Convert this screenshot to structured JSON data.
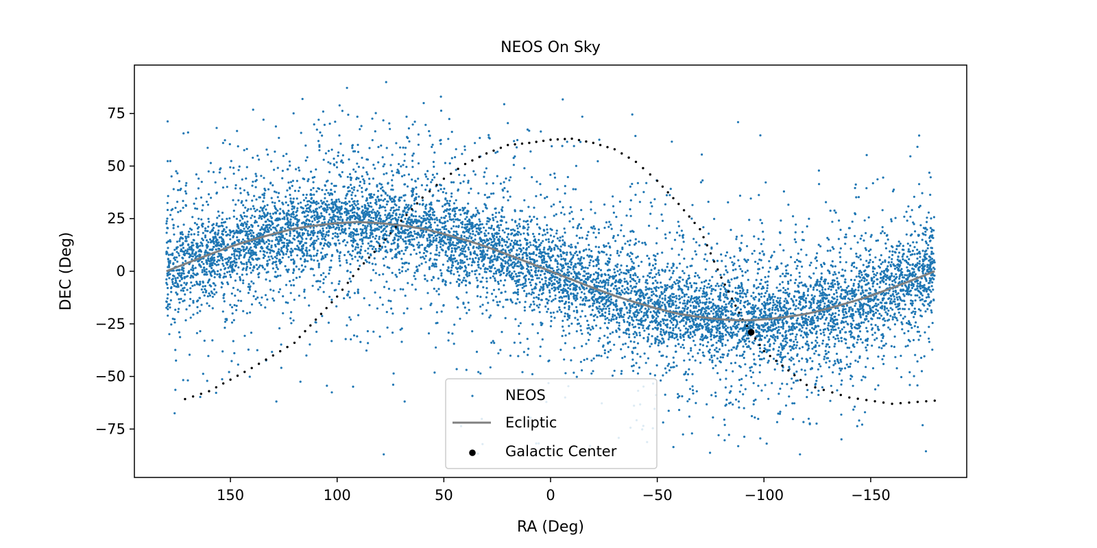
{
  "chart_data": {
    "type": "scatter",
    "title": "NEOS On Sky",
    "xlabel": "RA (Deg)",
    "ylabel": "DEC (Deg)",
    "xlim": [
      195,
      -195
    ],
    "ylim": [
      -98,
      98
    ],
    "x_ticks": [
      150,
      100,
      50,
      0,
      -50,
      -100,
      -150
    ],
    "x_tick_labels": [
      "150",
      "100",
      "50",
      "0",
      "−50",
      "−100",
      "−150"
    ],
    "y_ticks": [
      75,
      50,
      25,
      0,
      -25,
      -50,
      -75
    ],
    "y_tick_labels": [
      "75",
      "50",
      "25",
      "0",
      "−25",
      "−50",
      "−75"
    ],
    "grid": false,
    "legend_position": "lower-center",
    "series": [
      {
        "name": "NEOS",
        "kind": "scatter",
        "color": "#1f77b4",
        "description_values": {
          "ra_range": [
            -180,
            180
          ],
          "dec_range": [
            -90,
            90
          ],
          "concentrated_along": "ecliptic"
        }
      },
      {
        "name": "Ecliptic",
        "kind": "line",
        "color": "#808080",
        "ra": [
          180,
          150,
          120,
          90,
          60,
          30,
          0,
          -30,
          -60,
          -90,
          -120,
          -150,
          -180
        ],
        "dec": [
          0,
          11.5,
          20.1,
          23.4,
          20.1,
          11.5,
          0,
          -11.5,
          -20.1,
          -23.4,
          -20.1,
          -11.5,
          0
        ]
      },
      {
        "name": "Galactic Center",
        "kind": "marker",
        "color": "#000000",
        "ra": [
          -94
        ],
        "dec": [
          -29
        ]
      }
    ],
    "galactic_plane": {
      "color": "#000000",
      "style": "dotted",
      "ra": [
        -180,
        -160,
        -140,
        -120,
        -100,
        -90,
        -80,
        -70,
        -60,
        -50,
        -40,
        -30,
        -20,
        -10,
        0,
        10,
        20,
        30,
        40,
        50,
        60,
        70,
        80,
        90,
        100,
        110,
        120,
        140,
        160,
        175
      ],
      "dec": [
        -61.5,
        -63,
        -60,
        -54,
        -38,
        -23,
        -3,
        20,
        32,
        43,
        52,
        58,
        61,
        63,
        62.5,
        61,
        60,
        56,
        51,
        44,
        35,
        24,
        12,
        1,
        -12,
        -23,
        -34,
        -46,
        -57,
        -62
      ]
    }
  }
}
